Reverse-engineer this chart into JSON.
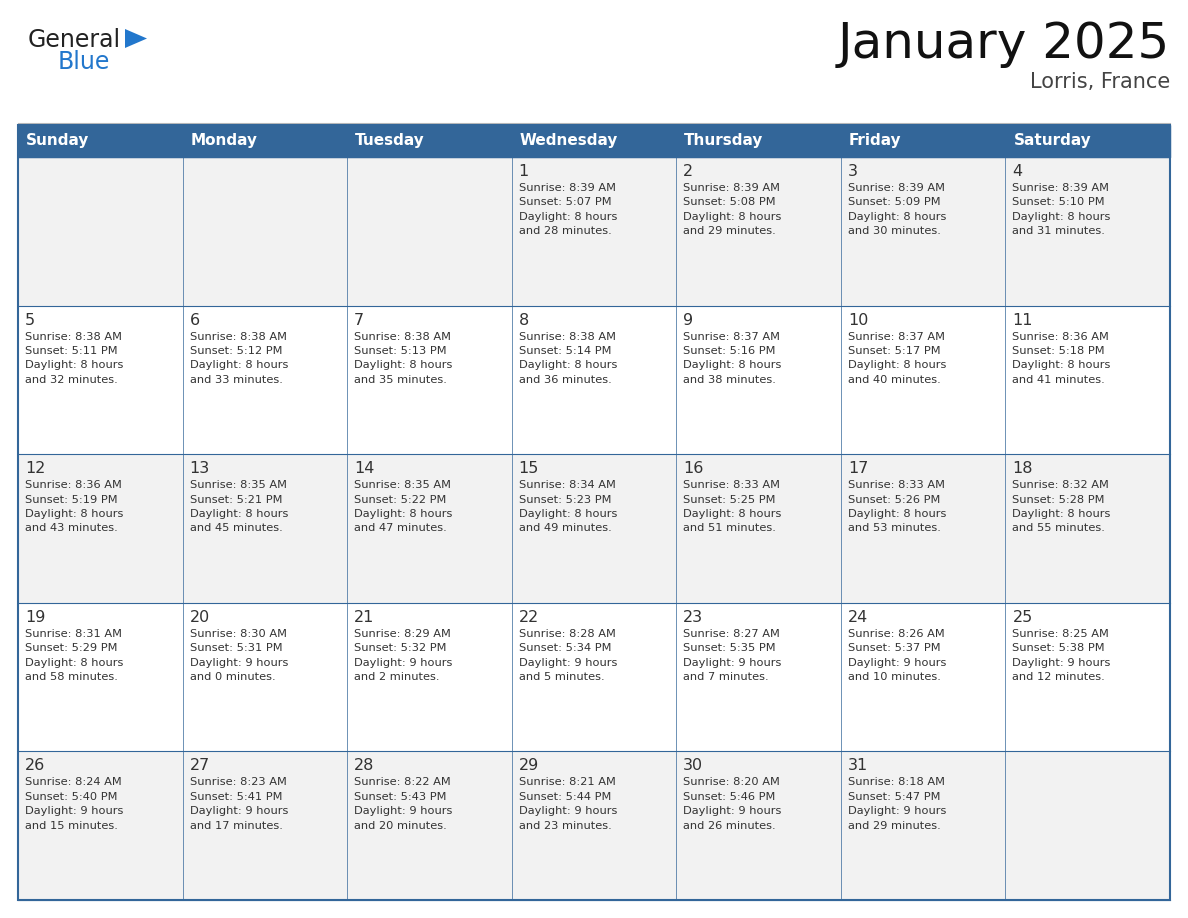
{
  "title": "January 2025",
  "subtitle": "Lorris, France",
  "header_bg": "#336699",
  "header_text_color": "#FFFFFF",
  "cell_bg_odd": "#F2F2F2",
  "cell_bg_even": "#FFFFFF",
  "border_color": "#336699",
  "text_color": "#333333",
  "logo_general_color": "#222222",
  "logo_blue_color": "#2277CC",
  "logo_triangle_color": "#2277CC",
  "title_color": "#111111",
  "subtitle_color": "#444444",
  "day_headers": [
    "Sunday",
    "Monday",
    "Tuesday",
    "Wednesday",
    "Thursday",
    "Friday",
    "Saturday"
  ],
  "days": [
    {
      "col": 0,
      "row": 0,
      "num": "",
      "text": ""
    },
    {
      "col": 1,
      "row": 0,
      "num": "",
      "text": ""
    },
    {
      "col": 2,
      "row": 0,
      "num": "",
      "text": ""
    },
    {
      "col": 3,
      "row": 0,
      "num": "1",
      "text": "Sunrise: 8:39 AM\nSunset: 5:07 PM\nDaylight: 8 hours\nand 28 minutes."
    },
    {
      "col": 4,
      "row": 0,
      "num": "2",
      "text": "Sunrise: 8:39 AM\nSunset: 5:08 PM\nDaylight: 8 hours\nand 29 minutes."
    },
    {
      "col": 5,
      "row": 0,
      "num": "3",
      "text": "Sunrise: 8:39 AM\nSunset: 5:09 PM\nDaylight: 8 hours\nand 30 minutes."
    },
    {
      "col": 6,
      "row": 0,
      "num": "4",
      "text": "Sunrise: 8:39 AM\nSunset: 5:10 PM\nDaylight: 8 hours\nand 31 minutes."
    },
    {
      "col": 0,
      "row": 1,
      "num": "5",
      "text": "Sunrise: 8:38 AM\nSunset: 5:11 PM\nDaylight: 8 hours\nand 32 minutes."
    },
    {
      "col": 1,
      "row": 1,
      "num": "6",
      "text": "Sunrise: 8:38 AM\nSunset: 5:12 PM\nDaylight: 8 hours\nand 33 minutes."
    },
    {
      "col": 2,
      "row": 1,
      "num": "7",
      "text": "Sunrise: 8:38 AM\nSunset: 5:13 PM\nDaylight: 8 hours\nand 35 minutes."
    },
    {
      "col": 3,
      "row": 1,
      "num": "8",
      "text": "Sunrise: 8:38 AM\nSunset: 5:14 PM\nDaylight: 8 hours\nand 36 minutes."
    },
    {
      "col": 4,
      "row": 1,
      "num": "9",
      "text": "Sunrise: 8:37 AM\nSunset: 5:16 PM\nDaylight: 8 hours\nand 38 minutes."
    },
    {
      "col": 5,
      "row": 1,
      "num": "10",
      "text": "Sunrise: 8:37 AM\nSunset: 5:17 PM\nDaylight: 8 hours\nand 40 minutes."
    },
    {
      "col": 6,
      "row": 1,
      "num": "11",
      "text": "Sunrise: 8:36 AM\nSunset: 5:18 PM\nDaylight: 8 hours\nand 41 minutes."
    },
    {
      "col": 0,
      "row": 2,
      "num": "12",
      "text": "Sunrise: 8:36 AM\nSunset: 5:19 PM\nDaylight: 8 hours\nand 43 minutes."
    },
    {
      "col": 1,
      "row": 2,
      "num": "13",
      "text": "Sunrise: 8:35 AM\nSunset: 5:21 PM\nDaylight: 8 hours\nand 45 minutes."
    },
    {
      "col": 2,
      "row": 2,
      "num": "14",
      "text": "Sunrise: 8:35 AM\nSunset: 5:22 PM\nDaylight: 8 hours\nand 47 minutes."
    },
    {
      "col": 3,
      "row": 2,
      "num": "15",
      "text": "Sunrise: 8:34 AM\nSunset: 5:23 PM\nDaylight: 8 hours\nand 49 minutes."
    },
    {
      "col": 4,
      "row": 2,
      "num": "16",
      "text": "Sunrise: 8:33 AM\nSunset: 5:25 PM\nDaylight: 8 hours\nand 51 minutes."
    },
    {
      "col": 5,
      "row": 2,
      "num": "17",
      "text": "Sunrise: 8:33 AM\nSunset: 5:26 PM\nDaylight: 8 hours\nand 53 minutes."
    },
    {
      "col": 6,
      "row": 2,
      "num": "18",
      "text": "Sunrise: 8:32 AM\nSunset: 5:28 PM\nDaylight: 8 hours\nand 55 minutes."
    },
    {
      "col": 0,
      "row": 3,
      "num": "19",
      "text": "Sunrise: 8:31 AM\nSunset: 5:29 PM\nDaylight: 8 hours\nand 58 minutes."
    },
    {
      "col": 1,
      "row": 3,
      "num": "20",
      "text": "Sunrise: 8:30 AM\nSunset: 5:31 PM\nDaylight: 9 hours\nand 0 minutes."
    },
    {
      "col": 2,
      "row": 3,
      "num": "21",
      "text": "Sunrise: 8:29 AM\nSunset: 5:32 PM\nDaylight: 9 hours\nand 2 minutes."
    },
    {
      "col": 3,
      "row": 3,
      "num": "22",
      "text": "Sunrise: 8:28 AM\nSunset: 5:34 PM\nDaylight: 9 hours\nand 5 minutes."
    },
    {
      "col": 4,
      "row": 3,
      "num": "23",
      "text": "Sunrise: 8:27 AM\nSunset: 5:35 PM\nDaylight: 9 hours\nand 7 minutes."
    },
    {
      "col": 5,
      "row": 3,
      "num": "24",
      "text": "Sunrise: 8:26 AM\nSunset: 5:37 PM\nDaylight: 9 hours\nand 10 minutes."
    },
    {
      "col": 6,
      "row": 3,
      "num": "25",
      "text": "Sunrise: 8:25 AM\nSunset: 5:38 PM\nDaylight: 9 hours\nand 12 minutes."
    },
    {
      "col": 0,
      "row": 4,
      "num": "26",
      "text": "Sunrise: 8:24 AM\nSunset: 5:40 PM\nDaylight: 9 hours\nand 15 minutes."
    },
    {
      "col": 1,
      "row": 4,
      "num": "27",
      "text": "Sunrise: 8:23 AM\nSunset: 5:41 PM\nDaylight: 9 hours\nand 17 minutes."
    },
    {
      "col": 2,
      "row": 4,
      "num": "28",
      "text": "Sunrise: 8:22 AM\nSunset: 5:43 PM\nDaylight: 9 hours\nand 20 minutes."
    },
    {
      "col": 3,
      "row": 4,
      "num": "29",
      "text": "Sunrise: 8:21 AM\nSunset: 5:44 PM\nDaylight: 9 hours\nand 23 minutes."
    },
    {
      "col": 4,
      "row": 4,
      "num": "30",
      "text": "Sunrise: 8:20 AM\nSunset: 5:46 PM\nDaylight: 9 hours\nand 26 minutes."
    },
    {
      "col": 5,
      "row": 4,
      "num": "31",
      "text": "Sunrise: 8:18 AM\nSunset: 5:47 PM\nDaylight: 9 hours\nand 29 minutes."
    },
    {
      "col": 6,
      "row": 4,
      "num": "",
      "text": ""
    }
  ]
}
